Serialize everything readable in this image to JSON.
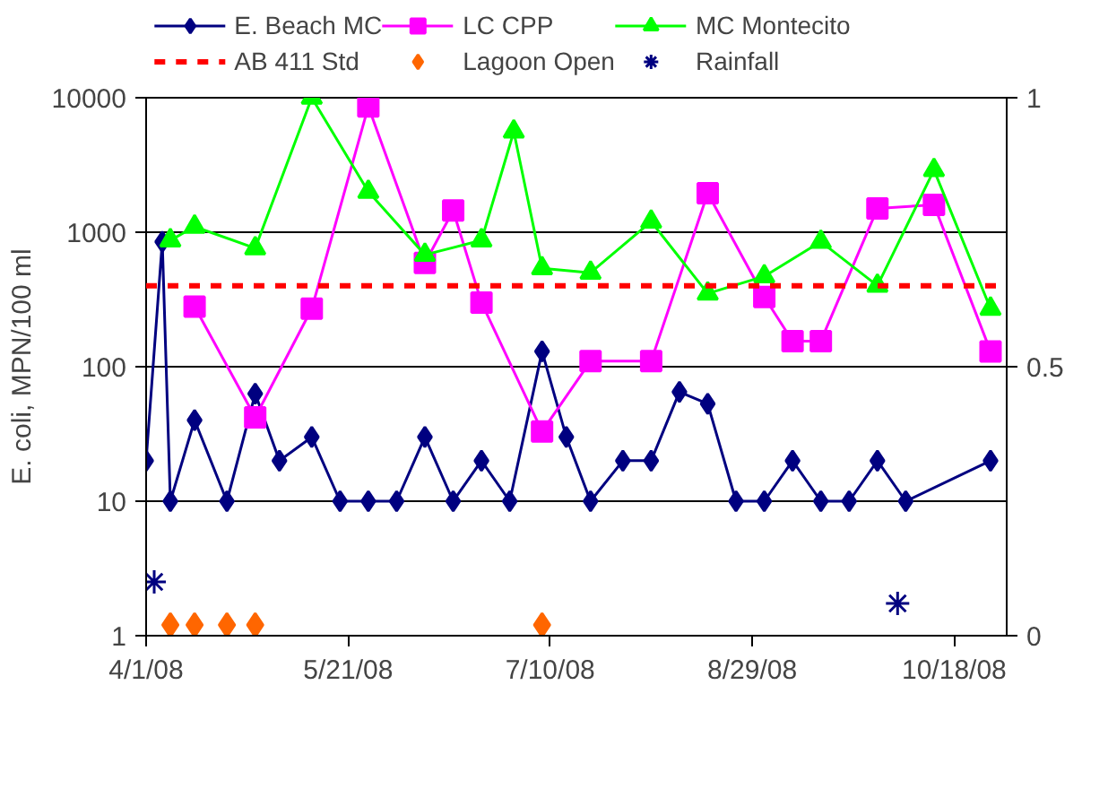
{
  "chart_data": {
    "type": "line",
    "ylabel": "E. coli, MPN/100 ml",
    "log": "y",
    "grid": "y",
    "legend": "top",
    "xlim": [
      "2008-04-01",
      "2008-10-31"
    ],
    "xticks": [
      {
        "value": "2008-04-01",
        "label": "4/1/08"
      },
      {
        "value": "2008-05-21",
        "label": "5/21/08"
      },
      {
        "value": "2008-07-10",
        "label": "7/10/08"
      },
      {
        "value": "2008-08-29",
        "label": "8/29/08"
      },
      {
        "value": "2008-10-18",
        "label": "10/18/08"
      }
    ],
    "ylim": [
      1,
      10000
    ],
    "yticks": [
      1,
      10,
      100,
      1000,
      10000
    ],
    "y2lim": [
      0,
      1
    ],
    "y2ticks": [
      0,
      {
        "value": 0.5,
        "label": "0.5"
      },
      1
    ],
    "ref_lines": [
      {
        "axis": "y",
        "value": 400,
        "label": "AB 411 Std",
        "color": "#ff0000",
        "line_style": "dashed"
      }
    ],
    "series": [
      {
        "name": "E. Beach MC",
        "marker": "diamond",
        "color": "#000080",
        "x": [
          "2008-04-01",
          "2008-04-05",
          "2008-04-07",
          "2008-04-13",
          "2008-04-21",
          "2008-04-28",
          "2008-05-04",
          "2008-05-12",
          "2008-05-19",
          "2008-05-26",
          "2008-06-02",
          "2008-06-09",
          "2008-06-16",
          "2008-06-23",
          "2008-06-30",
          "2008-07-08",
          "2008-07-14",
          "2008-07-20",
          "2008-07-28",
          "2008-08-04",
          "2008-08-11",
          "2008-08-18",
          "2008-08-25",
          "2008-09-01",
          "2008-09-08",
          "2008-09-15",
          "2008-09-22",
          "2008-09-29",
          "2008-10-06",
          "2008-10-27"
        ],
        "values": [
          20,
          850,
          10,
          40,
          10,
          63,
          20,
          30,
          10,
          10,
          10,
          30,
          10,
          20,
          10,
          130,
          30,
          10,
          20,
          20,
          65,
          53,
          10,
          10,
          20,
          10,
          10,
          20,
          10,
          20
        ]
      },
      {
        "name": "LC CPP",
        "marker": "square",
        "color": "#ff00ff",
        "x": [
          "2008-04-13",
          "2008-04-28",
          "2008-05-12",
          "2008-05-26",
          "2008-06-09",
          "2008-06-16",
          "2008-06-23",
          "2008-07-08",
          "2008-07-20",
          "2008-08-04",
          "2008-08-18",
          "2008-09-01",
          "2008-09-08",
          "2008-09-15",
          "2008-09-29",
          "2008-10-13",
          "2008-10-27"
        ],
        "values": [
          280,
          42,
          270,
          8600,
          590,
          1450,
          300,
          33,
          110,
          110,
          1950,
          330,
          155,
          155,
          1500,
          1600,
          130
        ]
      },
      {
        "name": "MC Montecito",
        "marker": "triangle",
        "color": "#00ff00",
        "x": [
          "2008-04-07",
          "2008-04-13",
          "2008-04-28",
          "2008-05-12",
          "2008-05-26",
          "2008-06-09",
          "2008-06-23",
          "2008-07-01",
          "2008-07-08",
          "2008-07-20",
          "2008-08-04",
          "2008-08-18",
          "2008-09-01",
          "2008-09-15",
          "2008-09-29",
          "2008-10-13",
          "2008-10-27"
        ],
        "values": [
          870,
          1100,
          760,
          10000,
          2000,
          680,
          870,
          5600,
          540,
          500,
          1200,
          350,
          470,
          850,
          400,
          2900,
          270
        ]
      },
      {
        "name": "Lagoon Open",
        "type": "scatter",
        "marker": "diamond",
        "axis": "y2",
        "color": "#ff6600",
        "x": [
          "2008-04-07",
          "2008-04-13",
          "2008-04-21",
          "2008-04-28",
          "2008-07-08"
        ],
        "values": [
          0.02,
          0.02,
          0.02,
          0.02,
          0.02
        ]
      },
      {
        "name": "Rainfall",
        "type": "scatter",
        "marker": "cross",
        "axis": "y2",
        "color": "#000080",
        "x": [
          "2008-04-03",
          "2008-10-04"
        ],
        "values": [
          0.1,
          0.06
        ]
      }
    ]
  }
}
